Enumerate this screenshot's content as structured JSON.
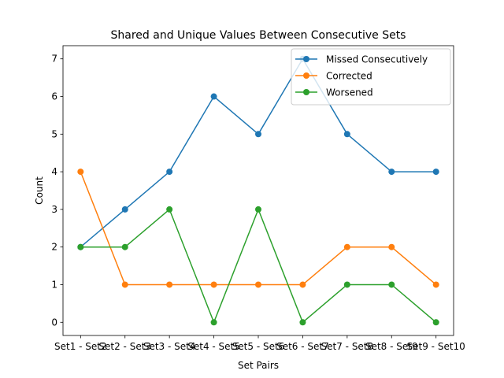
{
  "chart_data": {
    "type": "line",
    "title": "Shared and Unique Values Between Consecutive Sets",
    "xlabel": "Set Pairs",
    "ylabel": "Count",
    "categories": [
      "Set1 - Set2",
      "Set2 - Set3",
      "Set3 - Set4",
      "Set4 - Set5",
      "Set5 - Set6",
      "Set6 - Set7",
      "Set7 - Set8",
      "Set8 - Set9",
      "Set9 - Set10"
    ],
    "ylim": [
      -0.35,
      7.35
    ],
    "yticks": [
      0,
      1,
      2,
      3,
      4,
      5,
      6,
      7
    ],
    "grid": false,
    "legend_position": "top-right",
    "series": [
      {
        "name": "Missed Consecutively",
        "color": "#1f77b4",
        "values": [
          2,
          3,
          4,
          6,
          5,
          7,
          5,
          4,
          4
        ]
      },
      {
        "name": "Corrected",
        "color": "#ff7f0e",
        "values": [
          4,
          1,
          1,
          1,
          1,
          1,
          2,
          2,
          1
        ]
      },
      {
        "name": "Worsened",
        "color": "#2ca02c",
        "values": [
          2,
          2,
          3,
          0,
          3,
          0,
          1,
          1,
          0
        ]
      }
    ]
  }
}
